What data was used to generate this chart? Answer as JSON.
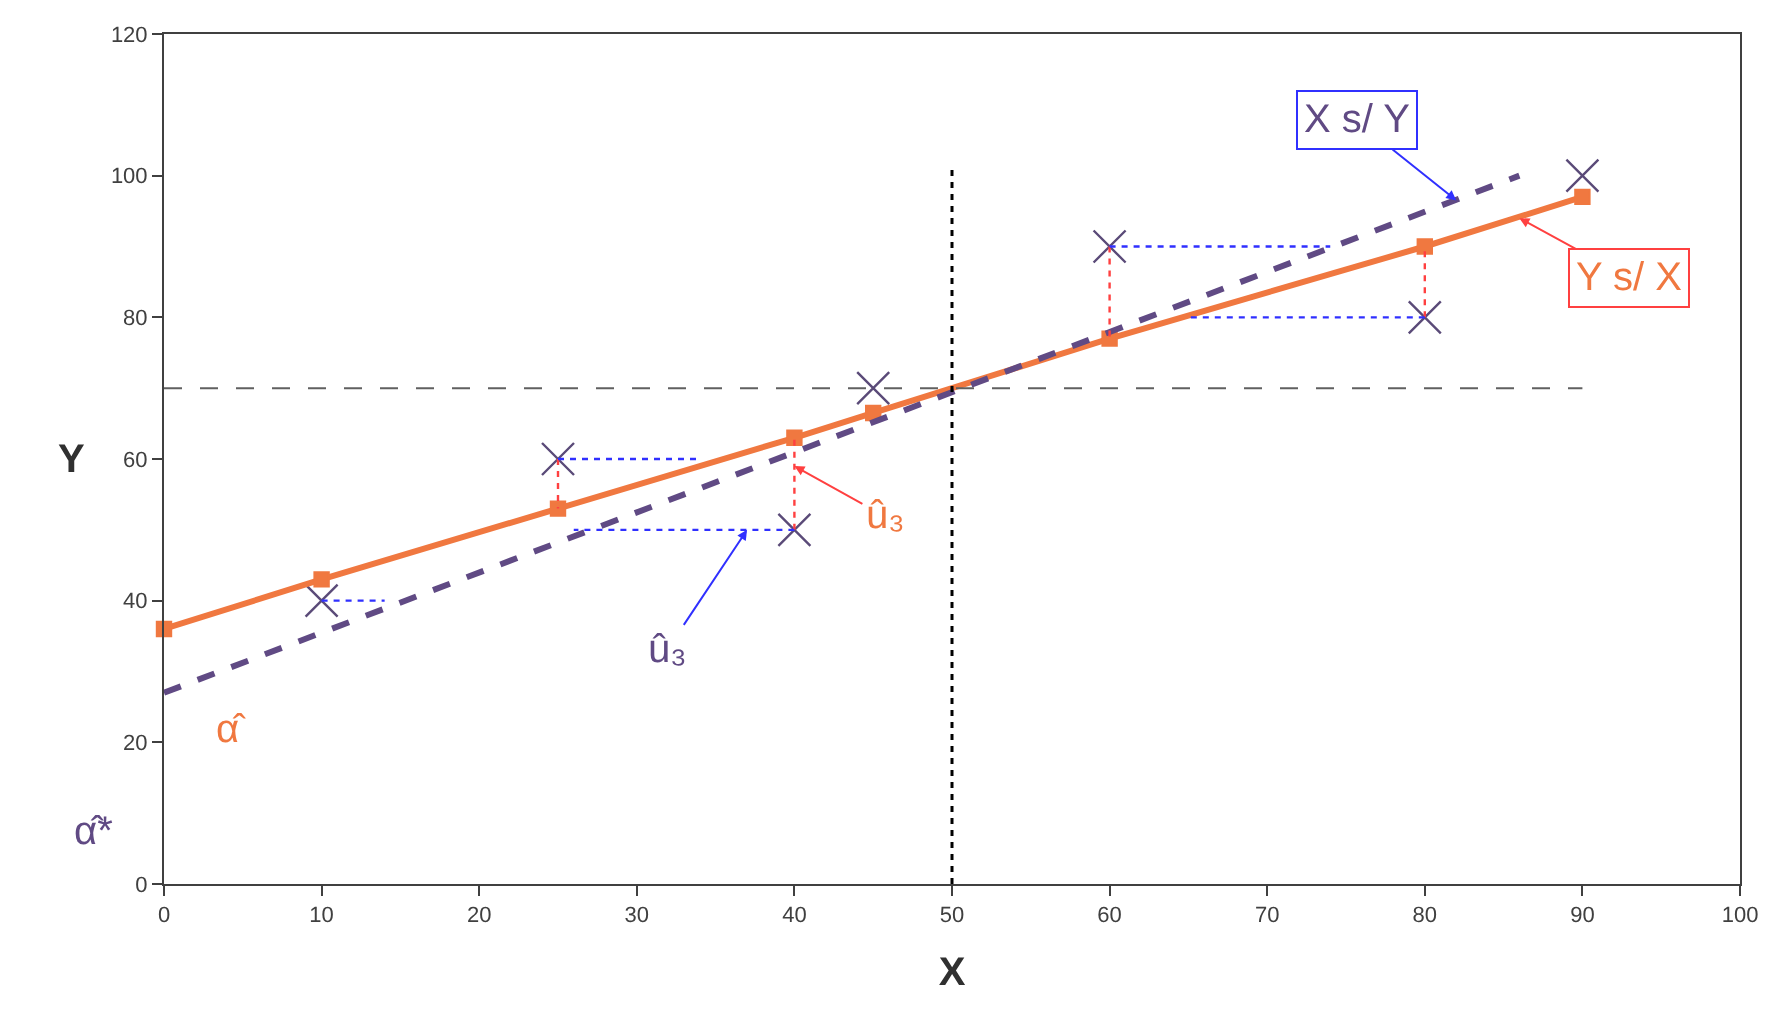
{
  "chart_data": {
    "type": "scatter",
    "xlabel": "X",
    "ylabel": "Y",
    "xlim": [
      0,
      100
    ],
    "xticks": [
      0,
      10,
      20,
      30,
      40,
      50,
      60,
      70,
      80,
      90,
      100
    ],
    "ylim": [
      0,
      120
    ],
    "yticks": [
      0,
      20,
      40,
      60,
      80,
      100,
      120
    ],
    "series": [
      {
        "marker": "cross",
        "color": "#5a4a78",
        "x": [
          10,
          25,
          40,
          45,
          60,
          80,
          90
        ],
        "values": [
          40,
          60,
          50,
          70,
          90,
          80,
          100
        ]
      },
      {
        "type": "line",
        "marker": "square",
        "line_style": "solid",
        "color": "#f07840",
        "x": [
          0,
          10,
          25,
          40,
          45,
          60,
          80,
          90
        ],
        "values": [
          36,
          43,
          53,
          63,
          66.5,
          77,
          90,
          97
        ]
      },
      {
        "type": "line",
        "marker": "none",
        "line_style": "dashed",
        "color": "#604a84",
        "x": [
          0,
          86
        ],
        "values": [
          27,
          100
        ]
      },
      {
        "type": "line",
        "marker": "none",
        "line_style": "dotted",
        "color": "#ff4040",
        "x": [
          25,
          25,
          null,
          40,
          40,
          null,
          60,
          60,
          null,
          80,
          80
        ],
        "values": [
          60,
          53,
          null,
          50,
          63,
          null,
          90,
          77,
          null,
          80,
          90
        ]
      },
      {
        "type": "line",
        "marker": "none",
        "line_style": "dotted",
        "color": "#3030ff",
        "x": [
          10,
          14,
          null,
          25,
          34,
          null,
          40,
          26,
          null,
          60,
          74,
          null,
          80,
          65
        ],
        "values": [
          40,
          40,
          null,
          60,
          60,
          null,
          50,
          50,
          null,
          90,
          90,
          null,
          80,
          80
        ]
      }
    ],
    "ref_lines": [
      {
        "axis": "x",
        "value": 50,
        "color": "#000000",
        "line_style": "dotted"
      },
      {
        "axis": "y",
        "value": 70,
        "color": "#606060",
        "line_style": "dashed"
      }
    ],
    "annotations": [
      {
        "text": "X s/ Y",
        "x": 82,
        "y": 96.5
      },
      {
        "text": "Y s/ X",
        "x": 86,
        "y": 94
      },
      {
        "text": "û₃",
        "x": 40,
        "y": 59
      },
      {
        "text": "û₃",
        "x": 37,
        "y": 50
      },
      "α̂",
      "α̂*"
    ]
  }
}
